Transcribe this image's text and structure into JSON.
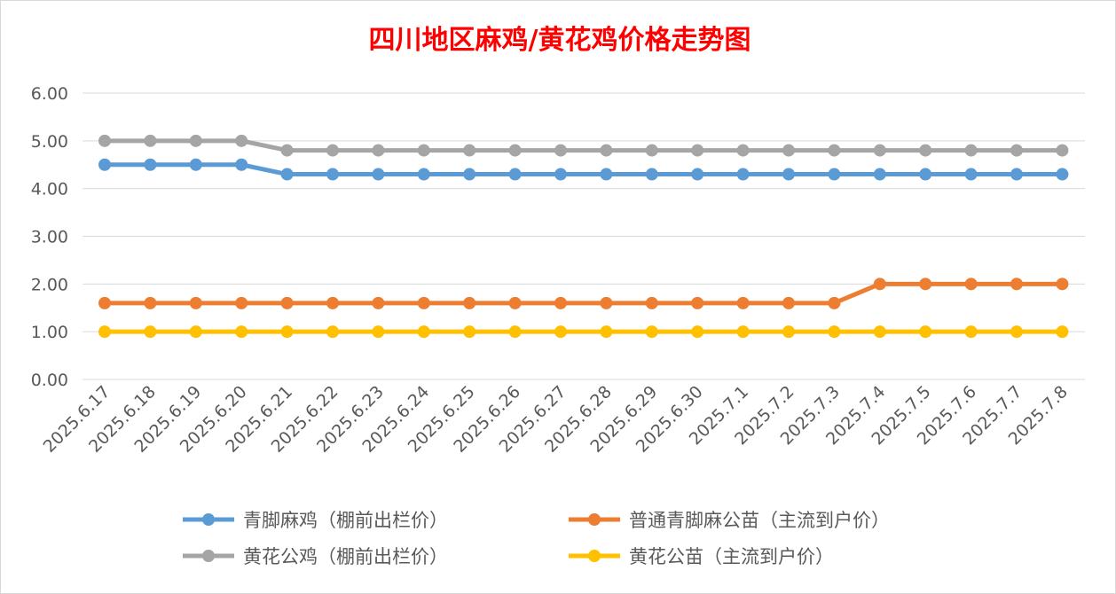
{
  "chart_data": {
    "type": "line",
    "title": "四川地区麻鸡/黄花鸡价格走势图",
    "title_color": "#ff0000",
    "xlabel": "",
    "ylabel": "",
    "ylim": [
      0,
      6
    ],
    "yticks": [
      "0.00",
      "1.00",
      "2.00",
      "3.00",
      "4.00",
      "5.00",
      "6.00"
    ],
    "grid": "horizontal",
    "legend_position": "bottom",
    "categories": [
      "2025.6.17",
      "2025.6.18",
      "2025.6.19",
      "2025.6.20",
      "2025.6.21",
      "2025.6.22",
      "2025.6.23",
      "2025.6.24",
      "2025.6.25",
      "2025.6.26",
      "2025.6.27",
      "2025.6.28",
      "2025.6.29",
      "2025.6.30",
      "2025.7.1",
      "2025.7.2",
      "2025.7.3",
      "2025.7.4",
      "2025.7.5",
      "2025.7.6",
      "2025.7.7",
      "2025.7.8"
    ],
    "series": [
      {
        "name": "青脚麻鸡（棚前出栏价）",
        "color": "#5b9bd5",
        "values": [
          4.5,
          4.5,
          4.5,
          4.5,
          4.3,
          4.3,
          4.3,
          4.3,
          4.3,
          4.3,
          4.3,
          4.3,
          4.3,
          4.3,
          4.3,
          4.3,
          4.3,
          4.3,
          4.3,
          4.3,
          4.3,
          4.3
        ]
      },
      {
        "name": "普通青脚麻公苗（主流到户价）",
        "color": "#ed7d31",
        "values": [
          1.6,
          1.6,
          1.6,
          1.6,
          1.6,
          1.6,
          1.6,
          1.6,
          1.6,
          1.6,
          1.6,
          1.6,
          1.6,
          1.6,
          1.6,
          1.6,
          1.6,
          2.0,
          2.0,
          2.0,
          2.0,
          2.0
        ]
      },
      {
        "name": "黄花公鸡（棚前出栏价）",
        "color": "#a5a5a5",
        "values": [
          5.0,
          5.0,
          5.0,
          5.0,
          4.8,
          4.8,
          4.8,
          4.8,
          4.8,
          4.8,
          4.8,
          4.8,
          4.8,
          4.8,
          4.8,
          4.8,
          4.8,
          4.8,
          4.8,
          4.8,
          4.8,
          4.8
        ]
      },
      {
        "name": "黄花公苗（主流到户价）",
        "color": "#ffc000",
        "values": [
          1.0,
          1.0,
          1.0,
          1.0,
          1.0,
          1.0,
          1.0,
          1.0,
          1.0,
          1.0,
          1.0,
          1.0,
          1.0,
          1.0,
          1.0,
          1.0,
          1.0,
          1.0,
          1.0,
          1.0,
          1.0,
          1.0
        ]
      }
    ]
  }
}
